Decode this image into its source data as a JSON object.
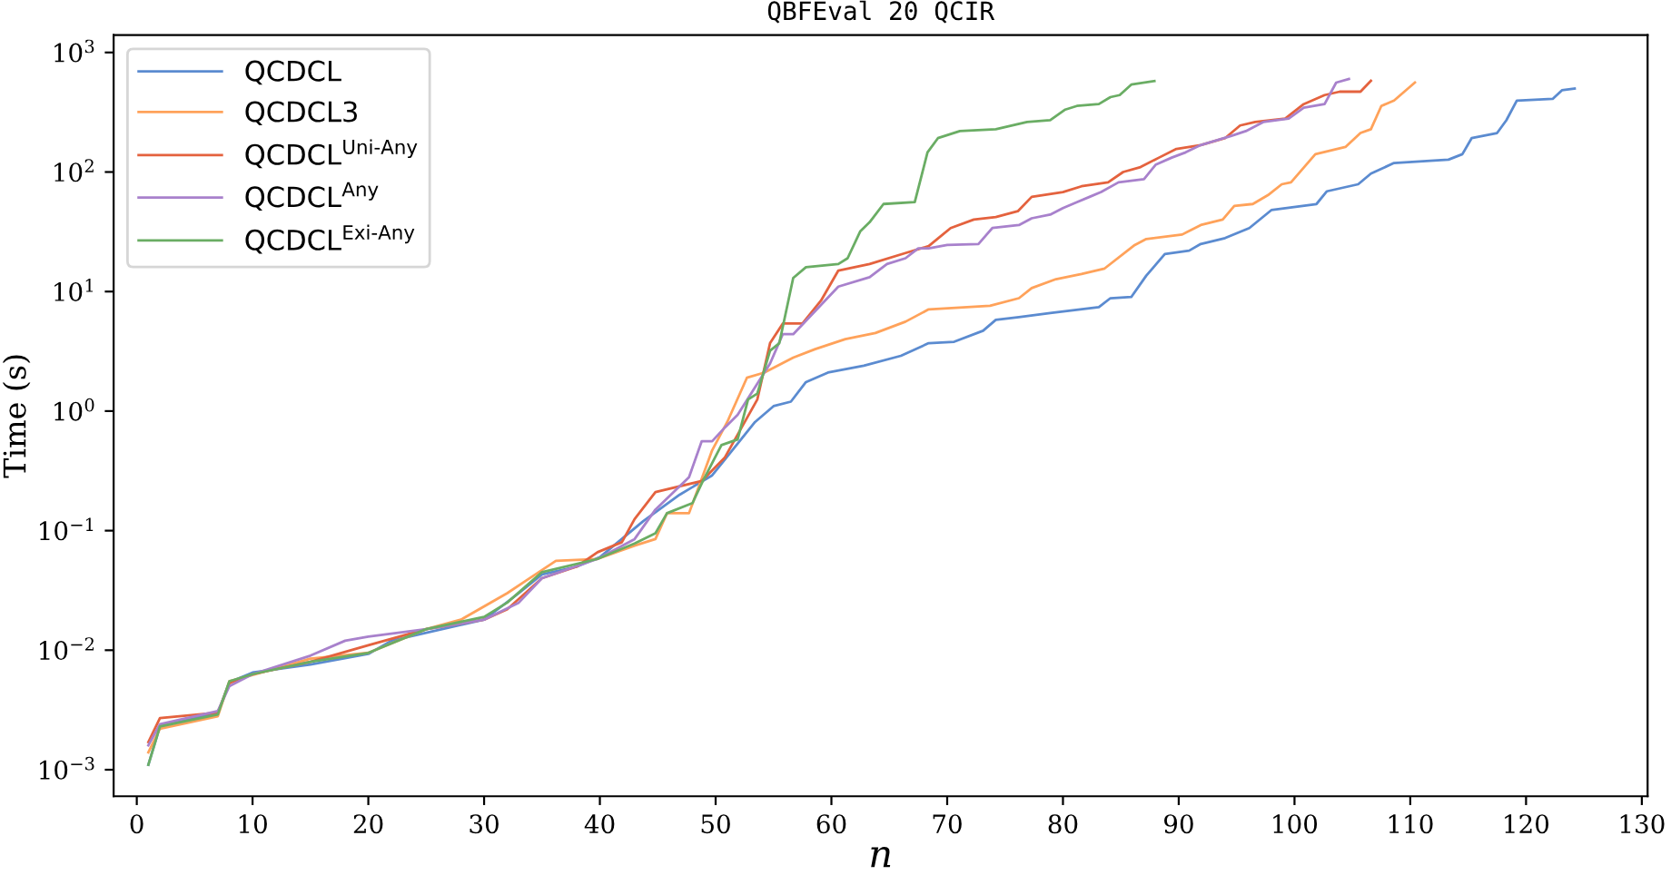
{
  "chart_data": {
    "type": "line",
    "title": "QBFEval 20 QCIR",
    "xlabel": "n",
    "ylabel": "Time (s)",
    "log": "y",
    "grid": false,
    "legend": "top left",
    "line_style": "solid",
    "marker": "none",
    "xlim": [
      -2,
      130.5
    ],
    "xticks": [
      0,
      10,
      20,
      30,
      40,
      50,
      60,
      70,
      80,
      90,
      100,
      110,
      120,
      130
    ],
    "ylim": [
      0.0006,
      1400
    ],
    "yticks": [
      {
        "value": 0.001,
        "label": "10$^{−3}$"
      },
      {
        "value": 0.01,
        "label": "10$^{−2}$"
      },
      {
        "value": 0.1,
        "label": "10$^{−1}$"
      },
      {
        "value": 1,
        "label": "10$^{0}$"
      },
      {
        "value": 10,
        "label": "10$^{1}$"
      },
      {
        "value": 100,
        "label": "10$^{2}$"
      },
      {
        "value": 1000,
        "label": "10$^{3}$"
      }
    ],
    "series": [
      {
        "name": "QCDCL",
        "color": "#5b8bd0",
        "x": [
          1,
          2,
          7,
          8,
          10,
          15,
          20,
          22,
          25,
          30,
          33,
          35,
          38,
          40,
          43.75,
          46.9,
          49.7,
          53.4,
          55,
          56.5,
          57.8,
          59.7,
          62.8,
          66,
          68.4,
          70.6,
          73.1,
          74.2,
          76.2,
          78.9,
          83.1,
          84.1,
          85.9,
          87.2,
          88.8,
          90.9,
          91.9,
          94,
          96.1,
          98,
          101.9,
          102.8,
          105.5,
          106.6,
          108.6,
          113.3,
          114.5,
          115.3,
          117.5,
          118.3,
          119.2,
          122.3,
          123.1,
          124.2
        ],
        "values": [
          0.0011,
          0.0023,
          0.003,
          0.0054,
          0.0065,
          0.0076,
          0.0093,
          0.012,
          0.014,
          0.018,
          0.03,
          0.043,
          0.05,
          0.06,
          0.12,
          0.2,
          0.29,
          0.81,
          1.1,
          1.2,
          1.75,
          2.1,
          2.4,
          2.9,
          3.7,
          3.8,
          4.7,
          5.8,
          6.1,
          6.6,
          7.4,
          8.8,
          9.0,
          13.6,
          20.6,
          22,
          25,
          28,
          34,
          48,
          54,
          69,
          79,
          97,
          119,
          127,
          141,
          192,
          212,
          271,
          396,
          409,
          483,
          500
        ]
      },
      {
        "name": "QCDCL3",
        "color": "#ffa25a",
        "x": [
          1,
          2,
          7,
          8,
          10,
          15,
          20,
          25,
          28,
          32,
          33.6,
          36.2,
          39.8,
          43,
          44.8,
          45.8,
          47.7,
          49.7,
          51,
          52.7,
          54.2,
          56.7,
          58.6,
          61.2,
          63.8,
          66.4,
          68.4,
          73.7,
          76.2,
          77.3,
          79.4,
          81.6,
          83.6,
          86.2,
          87.2,
          90.3,
          91.9,
          93.8,
          94.8,
          96.4,
          97.7,
          98.9,
          99.7,
          101.8,
          104.4,
          105.7,
          106.6,
          107.5,
          108.6,
          110.4
        ],
        "values": [
          0.0014,
          0.0022,
          0.0028,
          0.0055,
          0.0062,
          0.0085,
          0.0095,
          0.015,
          0.018,
          0.03,
          0.038,
          0.056,
          0.058,
          0.075,
          0.085,
          0.14,
          0.14,
          0.47,
          0.81,
          1.9,
          2.1,
          2.8,
          3.3,
          4,
          4.5,
          5.6,
          7.1,
          7.6,
          8.8,
          10.7,
          12.7,
          14,
          15.6,
          24.5,
          27.5,
          30,
          36,
          40,
          52,
          54,
          64,
          79,
          82,
          141,
          162,
          212,
          228,
          357,
          396,
          560
        ]
      },
      {
        "name": "QCDCL$^{Uni-Any}$",
        "color": "#e4623e",
        "x": [
          1,
          2,
          7,
          8,
          10,
          15,
          20,
          25,
          30,
          32,
          35,
          38,
          39.8,
          41.9,
          43,
          44.8,
          48.8,
          50.8,
          53.6,
          54.7,
          55.8,
          57.5,
          59.1,
          60.6,
          63.3,
          66.4,
          68.4,
          70.3,
          72.3,
          74.2,
          76.1,
          77.3,
          80,
          81.6,
          83.9,
          85.2,
          86.7,
          88.3,
          89.8,
          91.9,
          94,
          95.3,
          96.6,
          99.2,
          100.8,
          102.6,
          103.9,
          105.7,
          106.6
        ],
        "values": [
          0.0017,
          0.0027,
          0.003,
          0.0053,
          0.0063,
          0.008,
          0.011,
          0.015,
          0.018,
          0.022,
          0.04,
          0.05,
          0.066,
          0.08,
          0.125,
          0.21,
          0.26,
          0.41,
          1.25,
          3.7,
          5.4,
          5.4,
          8.4,
          15,
          17,
          21,
          24,
          34,
          40,
          42,
          47,
          62,
          68,
          76,
          82,
          100,
          110,
          132,
          156,
          168,
          192,
          245,
          262,
          280,
          370,
          440,
          470,
          470,
          580
        ]
      },
      {
        "name": "QCDCL$^{Any}$",
        "color": "#a881cc",
        "x": [
          1,
          2,
          7,
          8,
          10,
          15,
          18,
          20,
          25,
          30,
          33,
          35,
          39.8,
          43,
          44.8,
          47.7,
          48.8,
          49.7,
          50.8,
          51.9,
          54.7,
          55.8,
          56.7,
          60.6,
          63.3,
          64.8,
          66.4,
          67.5,
          68.4,
          70,
          72.7,
          73.9,
          76.2,
          77.3,
          78.9,
          80,
          81.2,
          82.3,
          83.3,
          84.8,
          87,
          88,
          89.4,
          90.6,
          91.9,
          94.5,
          95.8,
          97.3,
          99.5,
          100.8,
          102.6,
          103.6,
          104.7
        ],
        "values": [
          0.0016,
          0.0024,
          0.0031,
          0.005,
          0.0063,
          0.009,
          0.012,
          0.013,
          0.015,
          0.018,
          0.025,
          0.04,
          0.058,
          0.085,
          0.15,
          0.28,
          0.56,
          0.56,
          0.73,
          0.93,
          2.5,
          4.4,
          4.4,
          11,
          13.2,
          17,
          19,
          23,
          23,
          24.5,
          25,
          34,
          36,
          41,
          44,
          50,
          56,
          62,
          68,
          82,
          87,
          115,
          132,
          146,
          168,
          200,
          220,
          262,
          280,
          345,
          370,
          560,
          600
        ]
      },
      {
        "name": "QCDCL$^{Exi-Any}$",
        "color": "#6aad64",
        "x": [
          1,
          2,
          7,
          8,
          10,
          15,
          20,
          25,
          30,
          32,
          35,
          39.8,
          43,
          44.8,
          45.8,
          48,
          48.9,
          50.5,
          51.9,
          52.8,
          53.6,
          54.7,
          55.5,
          56.7,
          57.8,
          60.6,
          61.4,
          62.5,
          63.3,
          64.5,
          67.2,
          68.3,
          69.2,
          71.1,
          74.2,
          76.9,
          78.9,
          80.2,
          81.2,
          83.1,
          84.1,
          84.9,
          85.9,
          87.9
        ],
        "values": [
          0.0011,
          0.0023,
          0.0029,
          0.0055,
          0.0063,
          0.008,
          0.0095,
          0.015,
          0.019,
          0.025,
          0.045,
          0.058,
          0.078,
          0.095,
          0.14,
          0.17,
          0.26,
          0.52,
          0.58,
          1.25,
          1.4,
          3.2,
          3.7,
          13,
          16,
          17,
          19,
          32,
          38,
          54,
          56,
          146,
          192,
          220,
          228,
          262,
          272,
          333,
          357,
          370,
          423,
          440,
          539,
          577
        ]
      }
    ]
  }
}
